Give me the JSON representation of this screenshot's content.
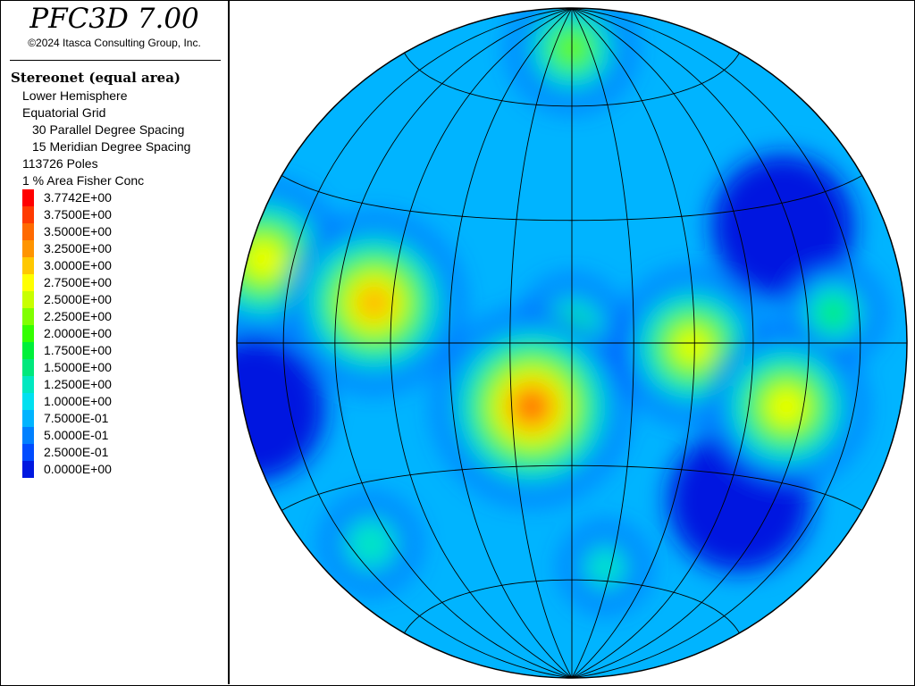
{
  "app": {
    "title": "PFC3D 7.00",
    "copyright": "©2024 Itasca Consulting Group, Inc."
  },
  "chart_data": {
    "type": "heatmap",
    "title": "Stereonet (equal area)",
    "info_lines": [
      "Lower Hemisphere",
      "Equatorial Grid",
      "30 Parallel Degree Spacing",
      "15 Meridian Degree Spacing",
      "113726 Poles",
      "1 % Area Fisher Conc"
    ],
    "colorbar": {
      "levels": [
        {
          "label": "3.7742E+00",
          "value": 3.7742,
          "color": "#ff0000"
        },
        {
          "label": "3.7500E+00",
          "value": 3.75,
          "color": "#ff3a00"
        },
        {
          "label": "3.5000E+00",
          "value": 3.5,
          "color": "#ff6a00"
        },
        {
          "label": "3.2500E+00",
          "value": 3.25,
          "color": "#ff9400"
        },
        {
          "label": "3.0000E+00",
          "value": 3.0,
          "color": "#ffc800"
        },
        {
          "label": "2.7500E+00",
          "value": 2.75,
          "color": "#ffff00"
        },
        {
          "label": "2.5000E+00",
          "value": 2.5,
          "color": "#c8ff00"
        },
        {
          "label": "2.2500E+00",
          "value": 2.25,
          "color": "#80ff00"
        },
        {
          "label": "2.0000E+00",
          "value": 2.0,
          "color": "#34ff00"
        },
        {
          "label": "1.7500E+00",
          "value": 1.75,
          "color": "#00f03a"
        },
        {
          "label": "1.5000E+00",
          "value": 1.5,
          "color": "#00e87c"
        },
        {
          "label": "1.2500E+00",
          "value": 1.25,
          "color": "#00e8c0"
        },
        {
          "label": "1.0000E+00",
          "value": 1.0,
          "color": "#00e0f0"
        },
        {
          "label": "7.5000E-01",
          "value": 0.75,
          "color": "#00b4ff"
        },
        {
          "label": "5.0000E-01",
          "value": 0.5,
          "color": "#0080ff"
        },
        {
          "label": "2.5000E-01",
          "value": 0.25,
          "color": "#004cff"
        },
        {
          "label": "0.0000E+00",
          "value": 0.0,
          "color": "#0018e0"
        }
      ]
    },
    "grid": {
      "projection": "equal area",
      "hemisphere": "lower",
      "type": "equatorial",
      "parallel_spacing_deg": 30,
      "meridian_spacing_deg": 15
    },
    "concentration_hotspots": [
      {
        "name": "peak",
        "x": -0.12,
        "y": -0.19,
        "value": 3.77
      },
      {
        "name": "west-belt",
        "x": -0.59,
        "y": 0.12,
        "value": 3.4
      },
      {
        "name": "east-south",
        "x": 0.64,
        "y": -0.19,
        "value": 3.0
      },
      {
        "name": "east-center",
        "x": 0.36,
        "y": -0.01,
        "value": 2.9
      },
      {
        "name": "far-west",
        "x": -0.92,
        "y": 0.25,
        "value": 3.0
      },
      {
        "name": "north-cap",
        "x": 0.0,
        "y": 0.88,
        "value": 2.3
      },
      {
        "name": "center",
        "x": 0.0,
        "y": 0.04,
        "value": 1.9
      },
      {
        "name": "east",
        "x": 0.78,
        "y": 0.09,
        "value": 1.8
      },
      {
        "name": "south",
        "x": 0.1,
        "y": -0.67,
        "value": 1.5
      },
      {
        "name": "southwest",
        "x": -0.6,
        "y": -0.6,
        "value": 1.7
      }
    ],
    "low_zones": [
      {
        "name": "east-blue",
        "x": 0.63,
        "y": 0.35
      },
      {
        "name": "southeast-blue",
        "x": 0.5,
        "y": -0.47
      },
      {
        "name": "west-blue",
        "x": -0.95,
        "y": -0.2
      }
    ]
  }
}
